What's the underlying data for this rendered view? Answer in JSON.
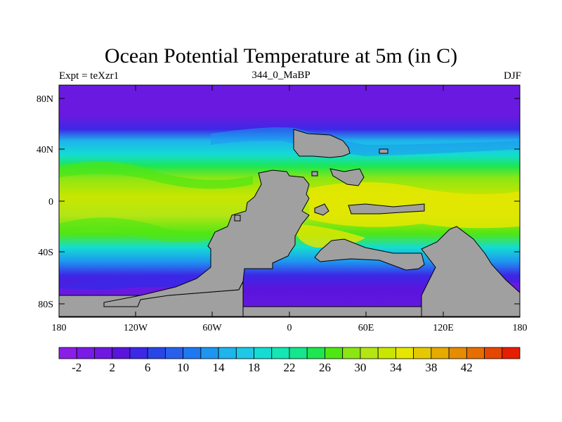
{
  "title": "Ocean Potential Temperature at 5m (in C)",
  "subtitle_left": "Expt = teXzr1",
  "subtitle_center": "344_0_MaBP",
  "subtitle_right": "DJF",
  "y_ticks": [
    "80N",
    "40N",
    "0",
    "40S",
    "80S"
  ],
  "x_ticks": [
    "180",
    "120W",
    "60W",
    "0",
    "60E",
    "120E",
    "180"
  ],
  "colorbar": {
    "labels": [
      "-2",
      "2",
      "6",
      "10",
      "14",
      "18",
      "22",
      "26",
      "30",
      "34",
      "38",
      "42"
    ],
    "colors": [
      "#8a1ee6",
      "#7a1ae6",
      "#6e18e0",
      "#5a14dc",
      "#3c28e6",
      "#2846e6",
      "#2860ec",
      "#1e78f0",
      "#1e96f0",
      "#1eb4ec",
      "#1ec8e6",
      "#14dcd2",
      "#14e6b4",
      "#14e68c",
      "#1ee650",
      "#50e614",
      "#8ce614",
      "#b4e614",
      "#c8e600",
      "#e6e600",
      "#e6c800",
      "#e6aa00",
      "#e68c00",
      "#e66e00",
      "#e64600",
      "#e61e00"
    ]
  },
  "colors": {
    "land": "#a0a0a0",
    "cold": "#6a1ae0",
    "blue": "#2a60ec",
    "cyan": "#14c8e6",
    "green": "#1ee650",
    "yellow_green": "#a0e614",
    "yellow": "#e6e600"
  }
}
